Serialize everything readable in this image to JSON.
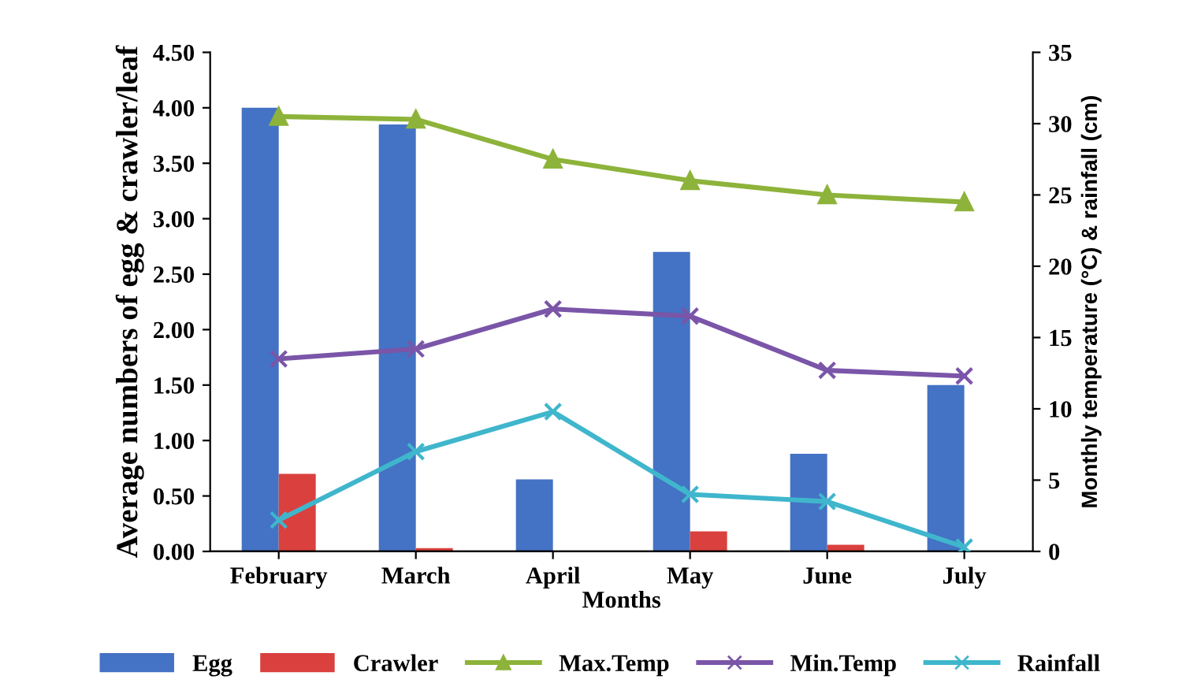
{
  "chart_data": {
    "type": "bar",
    "xlabel": "Months",
    "ylabel": "Average numbers of egg & crawler/leaf",
    "y2label": "Monthly temperature (°C) & rainfall (cm)",
    "categories": [
      "February",
      "March",
      "April",
      "May",
      "June",
      "July"
    ],
    "series": [
      {
        "name": "Egg",
        "color": "#4472c4",
        "values": [
          4.0,
          3.85,
          0.65,
          2.7,
          0.88,
          1.5
        ]
      },
      {
        "name": "Crawler",
        "color": "#d9403e",
        "values": [
          0.7,
          0.03,
          0,
          0.18,
          0.06,
          0
        ]
      },
      {
        "name": "Max.Temp",
        "type": "line",
        "axis": "y2",
        "marker": "triangle",
        "color": "#8db33a",
        "values": [
          30.5,
          30.3,
          27.5,
          26.0,
          25.0,
          24.5
        ]
      },
      {
        "name": "Min.Temp",
        "type": "line",
        "axis": "y2",
        "marker": "cross",
        "color": "#7a55a8",
        "values": [
          13.5,
          14.2,
          17.0,
          16.5,
          12.7,
          12.3
        ]
      },
      {
        "name": "Rainfall",
        "type": "line",
        "axis": "y2",
        "marker": "cross",
        "color": "#3fb6cc",
        "values": [
          2.2,
          7.0,
          9.8,
          4.0,
          3.5,
          0.3
        ]
      }
    ],
    "ylim": [
      0,
      4.5
    ],
    "yticks": [
      {
        "value": 0,
        "label": "0.00"
      },
      {
        "value": 0.5,
        "label": "0.50"
      },
      {
        "value": 1,
        "label": "1.00"
      },
      {
        "value": 1.5,
        "label": "1.50"
      },
      {
        "value": 2,
        "label": "2.00"
      },
      {
        "value": 2.5,
        "label": "2.50"
      },
      {
        "value": 3,
        "label": "3.00"
      },
      {
        "value": 3.5,
        "label": "3.50"
      },
      {
        "value": 4,
        "label": "4.00"
      },
      {
        "value": 4.5,
        "label": "4.50"
      }
    ],
    "y2lim": [
      0,
      35
    ],
    "y2ticks": [
      0,
      5,
      10,
      15,
      20,
      25,
      30,
      35
    ],
    "legend": "bottom",
    "grid": false
  }
}
